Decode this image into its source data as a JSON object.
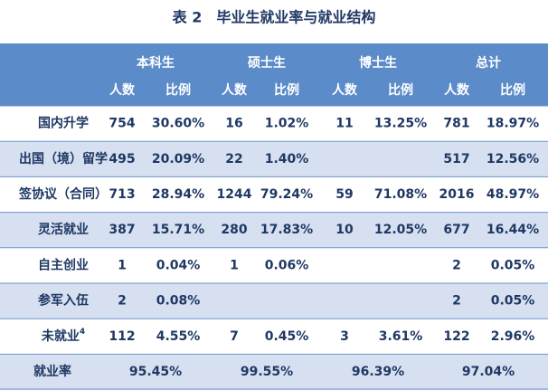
{
  "title": "表 2　毕业生就业率与就业结构",
  "header": {
    "groups": [
      "本科生",
      "硕士生",
      "博士生",
      "总计"
    ],
    "subheaders": [
      "人数",
      "比例",
      "人数",
      "比例",
      "人数",
      "比例",
      "人数",
      "比例"
    ]
  },
  "rows": [
    {
      "label": "国内升学",
      "cells": [
        "754",
        "30.60%",
        "16",
        "1.02%",
        "11",
        "13.25%",
        "781",
        "18.97%"
      ]
    },
    {
      "label": "出国（境）留学",
      "cells": [
        "495",
        "20.09%",
        "22",
        "1.40%",
        null,
        null,
        "517",
        "12.56%"
      ]
    },
    {
      "label": "签协议（合同）",
      "cells": [
        "713",
        "28.94%",
        "1244",
        "79.24%",
        "59",
        "71.08%",
        "2016",
        "48.97%"
      ]
    },
    {
      "label": "灵活就业",
      "cells": [
        "387",
        "15.71%",
        "280",
        "17.83%",
        "10",
        "12.05%",
        "677",
        "16.44%"
      ]
    },
    {
      "label": "自主创业",
      "cells": [
        "1",
        "0.04%",
        "1",
        "0.06%",
        null,
        null,
        "2",
        "0.05%"
      ]
    },
    {
      "label": "参军入伍",
      "cells": [
        "2",
        "0.08%",
        null,
        null,
        null,
        null,
        "2",
        "0.05%"
      ]
    },
    {
      "label": "未就业",
      "note": "4",
      "cells": [
        "112",
        "4.55%",
        "7",
        "0.45%",
        "3",
        "3.61%",
        "122",
        "2.96%"
      ]
    }
  ],
  "footer": {
    "label": "就业率",
    "cells": [
      "95.45%",
      "99.55%",
      "96.39%",
      "97.04%"
    ]
  }
}
